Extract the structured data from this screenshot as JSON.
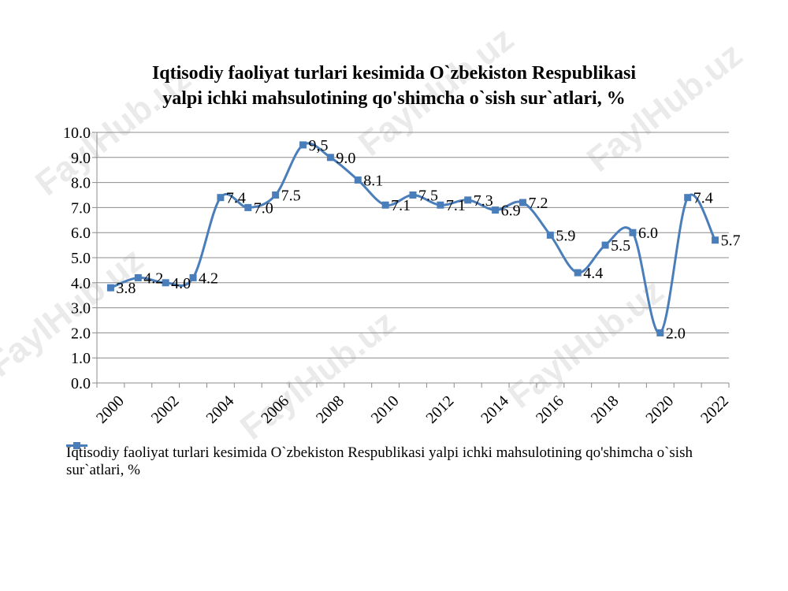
{
  "chart_data": {
    "type": "line",
    "title_lines": [
      "Iqtisodiy faoliyat turlari kesimida O`zbekiston Respublikasi",
      "yalpi ichki mahsulotining qo'shimcha o`sish sur`atlari, %"
    ],
    "x": [
      2000,
      2001,
      2002,
      2003,
      2004,
      2005,
      2006,
      2007,
      2008,
      2009,
      2010,
      2011,
      2012,
      2013,
      2014,
      2015,
      2016,
      2017,
      2018,
      2019,
      2020,
      2021,
      2022
    ],
    "x_tick_labels": [
      "2000",
      "2002",
      "2004",
      "2006",
      "2008",
      "2010",
      "2012",
      "2014",
      "2016",
      "2018",
      "2020",
      "2022"
    ],
    "y_tick_labels": [
      "0.0",
      "1.0",
      "2.0",
      "3.0",
      "4.0",
      "5.0",
      "6.0",
      "7.0",
      "8.0",
      "9.0",
      "10.0"
    ],
    "ylim": [
      0,
      10
    ],
    "grid": true,
    "legend_position": "bottom",
    "series": [
      {
        "name": "Iqtisodiy faoliyat turlari kesimida O`zbekiston Respublikasi yalpi ichki mahsulotining qo'shimcha o`sish sur`atlari, %",
        "values": [
          3.8,
          4.2,
          4.0,
          4.2,
          7.4,
          7.0,
          7.5,
          9.5,
          9.0,
          8.1,
          7.1,
          7.5,
          7.1,
          7.3,
          6.9,
          7.2,
          5.9,
          4.4,
          5.5,
          6.0,
          2.0,
          7.4,
          5.7
        ],
        "labels": [
          "3.8",
          "4.2",
          "4.0",
          "4.2",
          "7.4",
          "7.0",
          "7.5",
          "9,5",
          "9.0",
          "8.1",
          "7.1",
          "7.5",
          "7.1",
          "7.3",
          "6.9",
          "7.2",
          "5.9",
          "4.4",
          "5.5",
          "6.0",
          "2.0",
          "7.4",
          "5.7"
        ],
        "color": "#4a7ebb"
      }
    ],
    "watermark": "FaylHub.uz"
  }
}
